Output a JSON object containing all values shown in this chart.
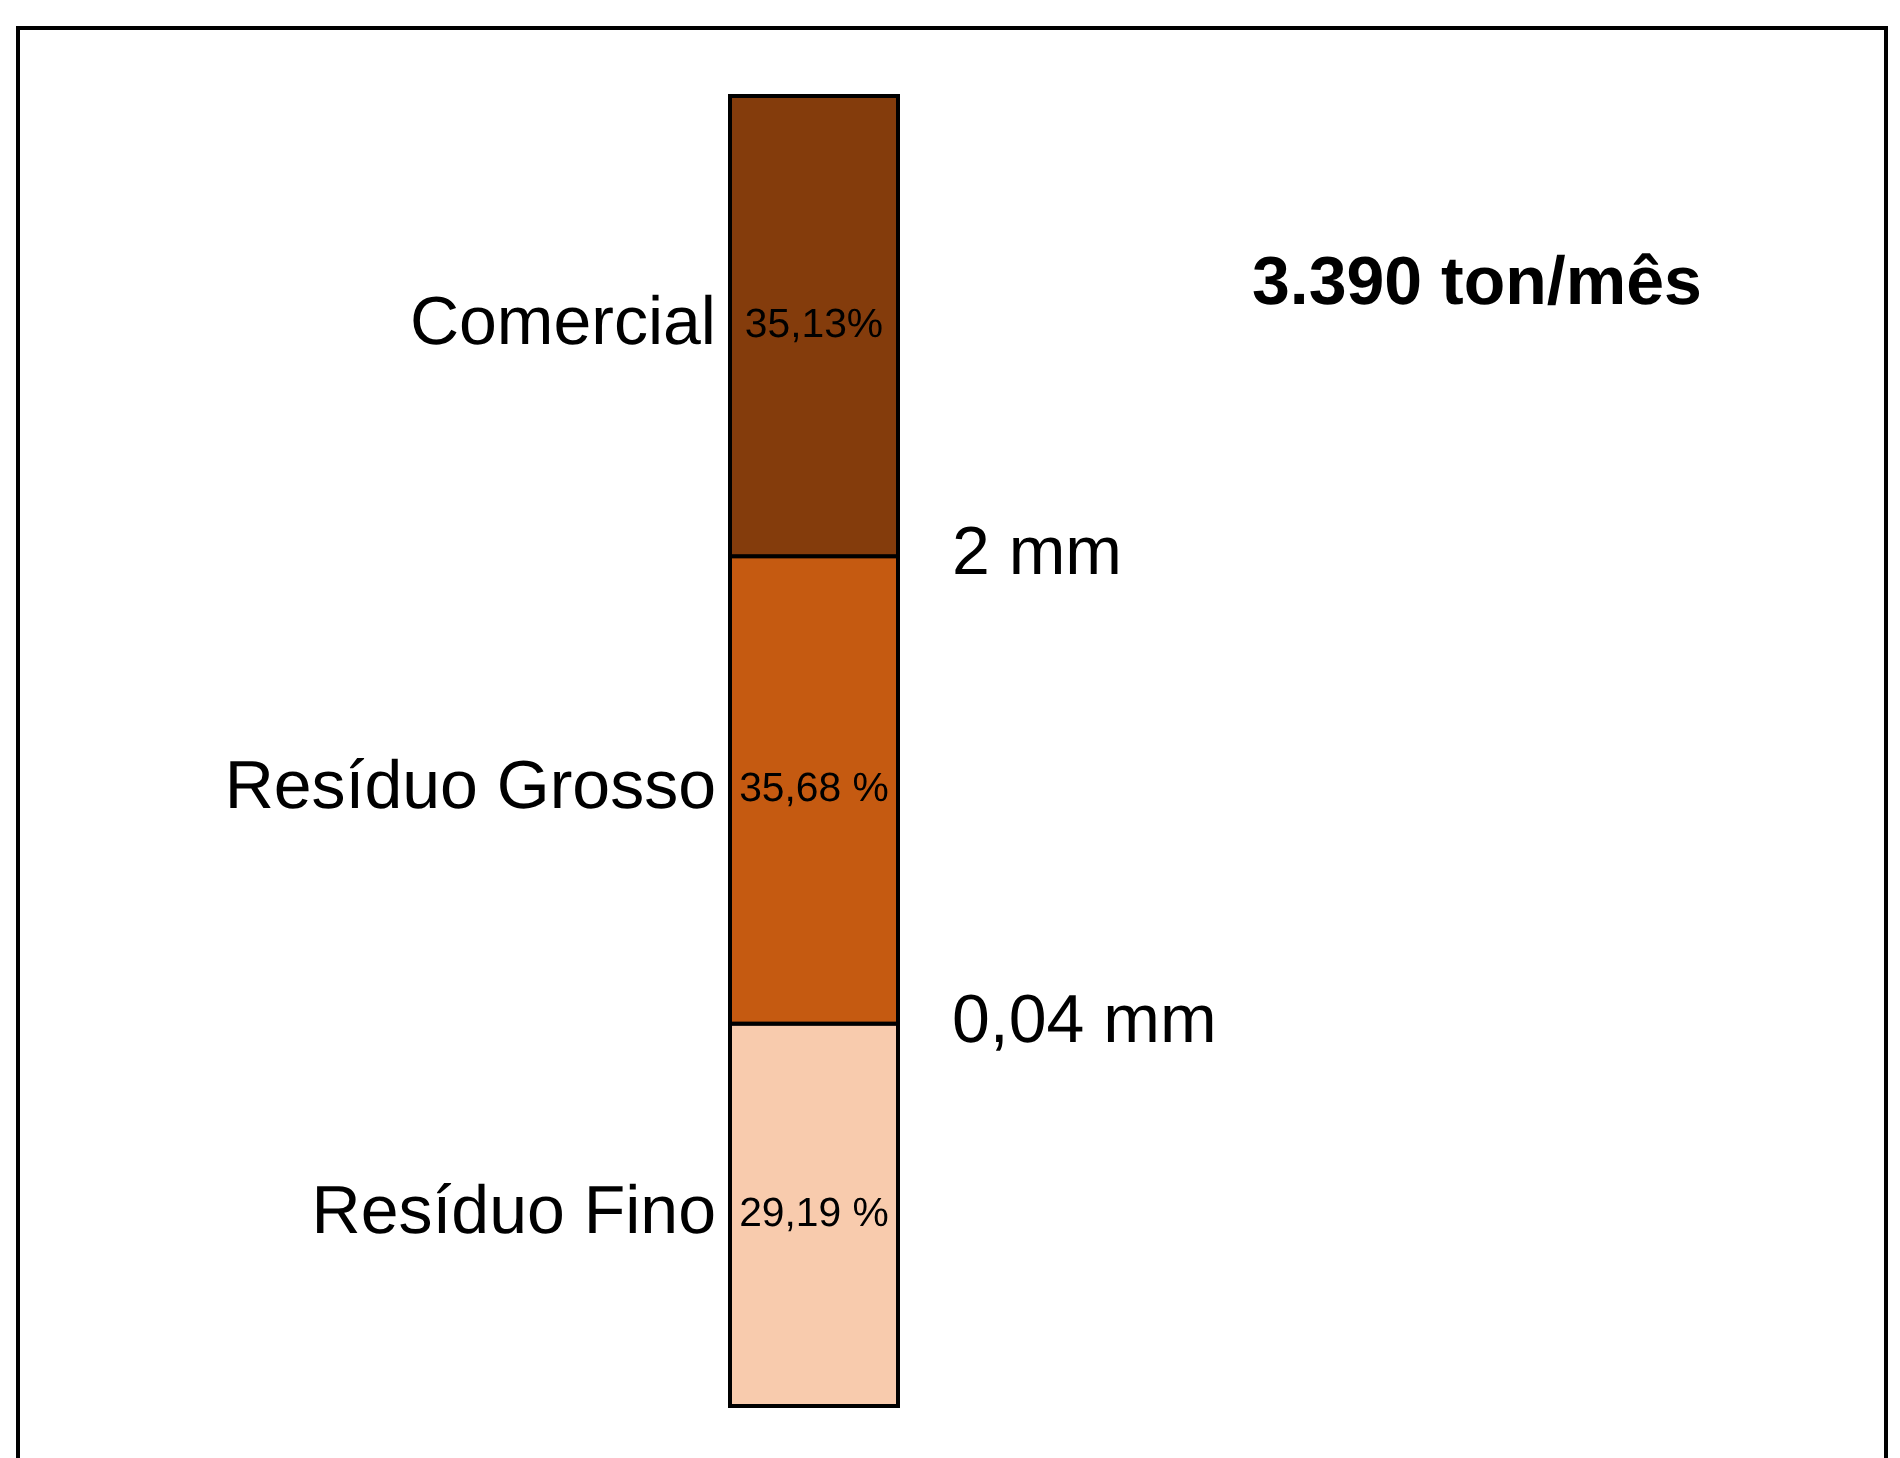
{
  "chart_data": {
    "type": "bar",
    "stacked": true,
    "categories": [
      null
    ],
    "series": [
      {
        "name": "Resíduo Fino",
        "color": "#f8cbad",
        "values": [
          29.19
        ],
        "value_labels": [
          "29,19 %"
        ]
      },
      {
        "name": "Resíduo Grosso",
        "color": "#c55a11",
        "values": [
          35.68
        ],
        "value_labels": [
          "35,68 %"
        ]
      },
      {
        "name": "Comercial",
        "color": "#843c0c",
        "values": [
          35.13
        ],
        "value_labels": [
          "35,13%"
        ]
      }
    ],
    "annotations": [
      "3.390 ton/mês",
      "2 mm",
      "0,04 mm"
    ]
  }
}
